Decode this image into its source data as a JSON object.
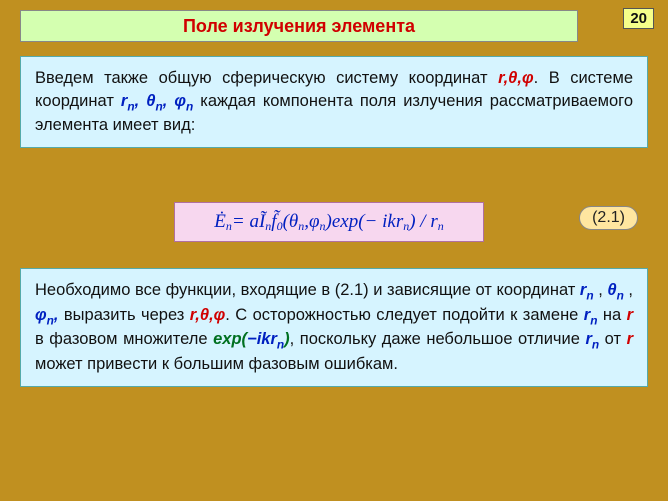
{
  "page_number": "20",
  "title": "Поле излучения элемента",
  "box1": {
    "t1": "Введем также общую сферическую систему координат ",
    "rtp": "r,θ,φ",
    "t2": ". В системе координат ",
    "rn": "r",
    "tn": "θ",
    "pn": "φ",
    "n": "n",
    "t3": " каждая компонента поля излучения рассматриваемого элемента имеет вид:"
  },
  "formula": {
    "lhs": "Ė",
    "eq": " = a ",
    "I": "Ĩ",
    "f": " f̃",
    "zero": "0",
    "args_open": "(θ",
    "args_mid": ",φ",
    "args_close": ")exp(− ikr",
    "tail": ") / r",
    "n": "n",
    "eqnum": "(2.1)"
  },
  "box2": {
    "t1": "Необходимо все функции, входящие в (2.1) и зависящие от координат ",
    "rn": "r",
    "tn": "θ",
    "pn": "φ",
    "n": "n",
    "t2": " выразить через ",
    "rtp": "r,θ,φ",
    "t3": ". С осторожностью следует подойти к замене ",
    "t4": " на ",
    "r": "r",
    "t5": " в фазовом множителе ",
    "exp1": "exp(",
    "exp2": "−ikr",
    "exp3": ")",
    "t6": ", поскольку даже небольшое отличие ",
    "t7": " от ",
    "t8": " может привести к большим фазовым ошибкам."
  },
  "colors": {
    "page_bg": "#c09020",
    "title_bg": "#d4ffb0",
    "title_fg": "#d00000",
    "box_bg": "#d6f4ff",
    "formula_bg": "#f7d7ef",
    "eqnum_bg": "#ffe6a0",
    "var_red": "#d00000",
    "var_blue": "#0020c0",
    "var_green": "#007020"
  }
}
